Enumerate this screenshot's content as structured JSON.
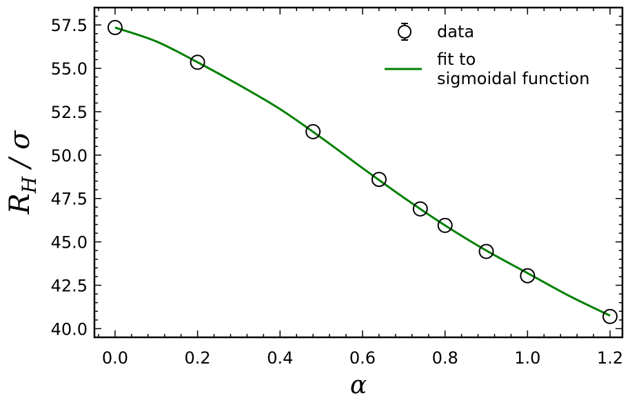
{
  "chart_data": {
    "type": "scatter",
    "xlabel": "α",
    "ylabel": {
      "main": "R",
      "sub": "H",
      "rest": " / σ"
    },
    "xlim": [
      -0.05,
      1.23
    ],
    "ylim": [
      39.5,
      58.5
    ],
    "xticks": [
      0.0,
      0.2,
      0.4,
      0.6,
      0.8,
      1.0,
      1.2
    ],
    "xtick_labels": [
      "0.0",
      "0.2",
      "0.4",
      "0.6",
      "0.8",
      "1.0",
      "1.2"
    ],
    "yticks": [
      40.0,
      42.5,
      45.0,
      47.5,
      50.0,
      52.5,
      55.0,
      57.5
    ],
    "ytick_labels": [
      "40.0",
      "42.5",
      "45.0",
      "47.5",
      "50.0",
      "52.5",
      "55.0",
      "57.5"
    ],
    "grid": false,
    "legend": {
      "placement": "top-right",
      "entries": [
        "data",
        "fit to",
        "sigmoidal function"
      ]
    },
    "series": [
      {
        "name": "data",
        "marker": "open-circle",
        "color": "#000000",
        "x": [
          0.0,
          0.2,
          0.48,
          0.64,
          0.74,
          0.8,
          0.9,
          1.0,
          1.2
        ],
        "y": [
          57.35,
          55.35,
          51.35,
          48.6,
          46.9,
          45.95,
          44.45,
          43.05,
          40.7
        ]
      },
      {
        "name": "fit to sigmoidal function",
        "style": "line",
        "color": "#008000",
        "x": [
          0.0,
          0.1,
          0.2,
          0.3,
          0.4,
          0.5,
          0.6,
          0.7,
          0.8,
          0.9,
          1.0,
          1.1,
          1.2
        ],
        "y": [
          57.35,
          56.55,
          55.35,
          54.05,
          52.65,
          51.0,
          49.25,
          47.55,
          45.95,
          44.5,
          43.2,
          41.9,
          40.75
        ]
      }
    ]
  }
}
